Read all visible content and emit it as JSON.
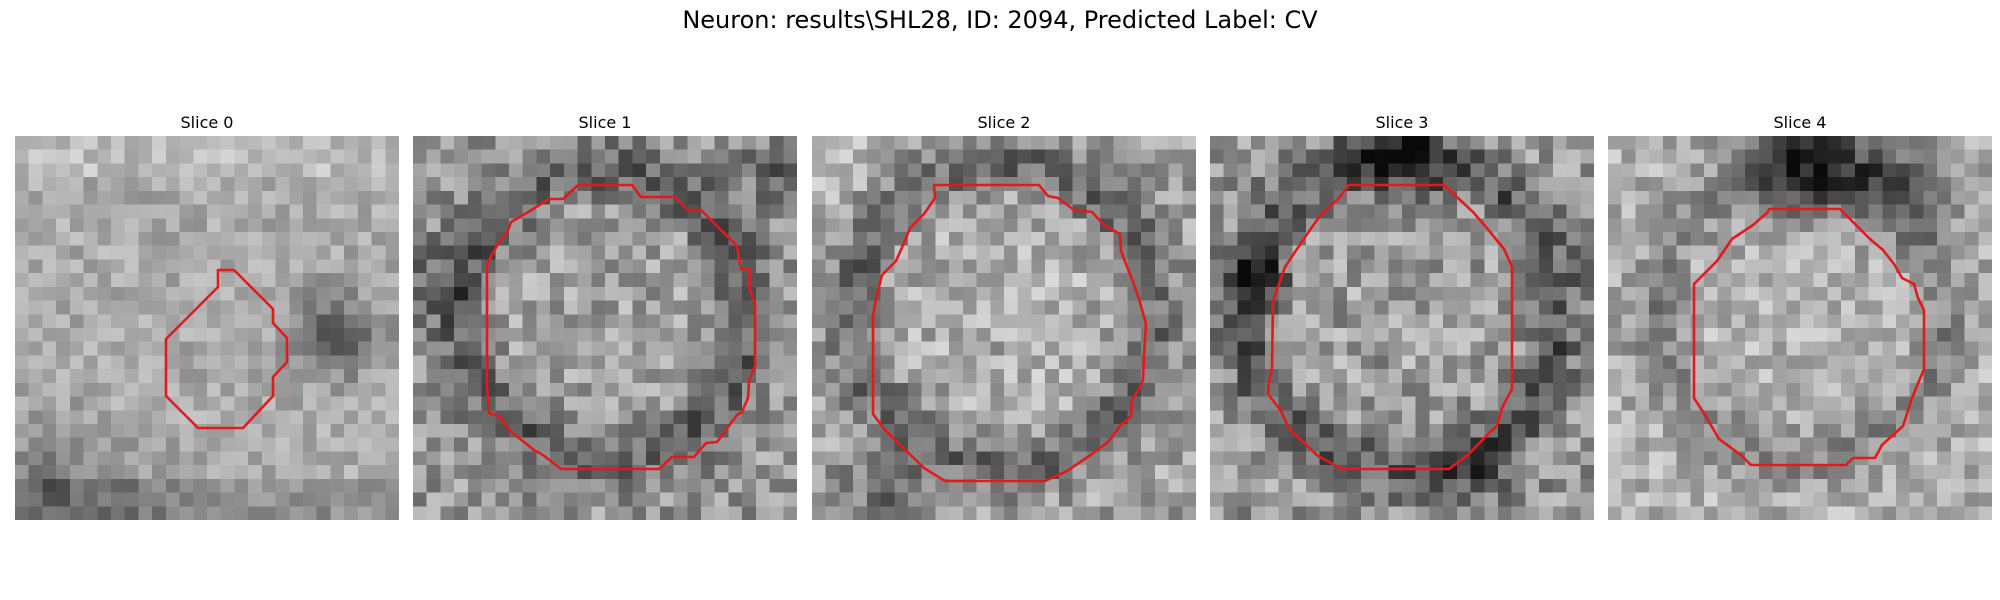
{
  "figure": {
    "title": "Neuron: results\\SHL28, ID: 2094, Predicted Label: CV",
    "contour_color": "#e31a1c",
    "colormap": "gray"
  },
  "panels": [
    {
      "title": "Slice 0"
    },
    {
      "title": "Slice 1"
    },
    {
      "title": "Slice 2"
    },
    {
      "title": "Slice 3"
    },
    {
      "title": "Slice 4"
    }
  ]
}
